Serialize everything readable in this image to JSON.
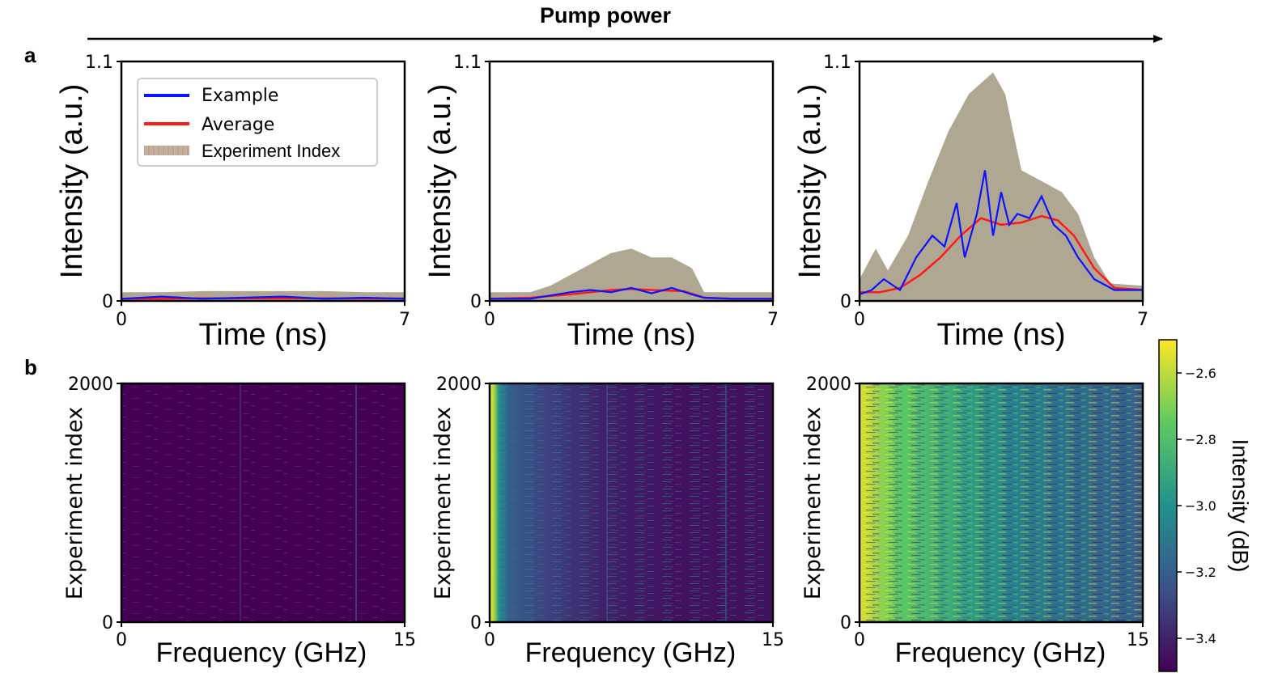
{
  "header": {
    "title": "Pump power"
  },
  "panel_labels": {
    "a": "a",
    "b": "b"
  },
  "chart_data": [
    {
      "type": "line",
      "panel": "a-low",
      "xlabel": "Time (ns)",
      "ylabel": "Intensity (a.u.)",
      "xlim": [
        0,
        7
      ],
      "ylim": [
        0,
        1.1
      ],
      "x_ticks": [
        "0",
        "7"
      ],
      "y_ticks": [
        "0",
        "1.1"
      ],
      "legend": {
        "placement": "top-left",
        "entries": [
          "Example",
          "Average",
          "Experiment Index"
        ]
      },
      "series": [
        {
          "name": "Average",
          "x": [
            0,
            1,
            2,
            3,
            4,
            5,
            6,
            7
          ],
          "values": [
            0.01,
            0.01,
            0.012,
            0.012,
            0.012,
            0.012,
            0.011,
            0.011
          ]
        },
        {
          "name": "Example",
          "x": [
            0,
            1,
            2,
            3,
            4,
            5,
            6,
            7
          ],
          "values": [
            0.01,
            0.02,
            0.01,
            0.015,
            0.02,
            0.01,
            0.015,
            0.01
          ]
        },
        {
          "name": "Experiment Index envelope (max)",
          "x": [
            0,
            1,
            2,
            3,
            4,
            5,
            6,
            7
          ],
          "values": [
            0.04,
            0.04,
            0.045,
            0.045,
            0.045,
            0.045,
            0.04,
            0.04
          ]
        }
      ]
    },
    {
      "type": "line",
      "panel": "a-mid",
      "xlabel": "Time (ns)",
      "ylabel": "Intensity (a.u.)",
      "xlim": [
        0,
        7
      ],
      "ylim": [
        0,
        1.1
      ],
      "x_ticks": [
        "0",
        "7"
      ],
      "y_ticks": [
        "0",
        "1.1"
      ],
      "series": [
        {
          "name": "Average",
          "x": [
            0,
            1,
            2,
            3,
            3.5,
            4,
            4.8,
            5.3,
            6,
            7
          ],
          "values": [
            0.01,
            0.015,
            0.03,
            0.05,
            0.055,
            0.05,
            0.045,
            0.015,
            0.01,
            0.01
          ]
        },
        {
          "name": "Example",
          "x": [
            0,
            1,
            2,
            2.5,
            3,
            3.5,
            4,
            4.5,
            5,
            5.3,
            6,
            7
          ],
          "values": [
            0.01,
            0.01,
            0.04,
            0.05,
            0.04,
            0.06,
            0.035,
            0.06,
            0.03,
            0.015,
            0.01,
            0.01
          ]
        },
        {
          "name": "Experiment Index envelope (max)",
          "x": [
            0,
            1,
            1.5,
            2,
            2.5,
            3,
            3.5,
            4,
            4.5,
            5,
            5.3,
            6,
            7
          ],
          "values": [
            0.04,
            0.04,
            0.07,
            0.12,
            0.17,
            0.22,
            0.24,
            0.2,
            0.2,
            0.15,
            0.04,
            0.04,
            0.04
          ]
        }
      ]
    },
    {
      "type": "line",
      "panel": "a-high",
      "xlabel": "Time (ns)",
      "ylabel": "Intensity (a.u.)",
      "xlim": [
        0,
        7
      ],
      "ylim": [
        0,
        1.1
      ],
      "x_ticks": [
        "0",
        "7"
      ],
      "y_ticks": [
        "0",
        "1.1"
      ],
      "series": [
        {
          "name": "Average",
          "x": [
            0,
            0.5,
            1,
            1.5,
            2,
            2.5,
            3,
            3.5,
            4,
            4.5,
            4.9,
            5.3,
            5.8,
            6.3,
            7
          ],
          "values": [
            0.04,
            0.04,
            0.06,
            0.12,
            0.2,
            0.3,
            0.38,
            0.35,
            0.36,
            0.39,
            0.37,
            0.3,
            0.15,
            0.06,
            0.05
          ]
        },
        {
          "name": "Example",
          "x": [
            0,
            0.3,
            0.6,
            1.0,
            1.4,
            1.8,
            2.1,
            2.4,
            2.6,
            2.9,
            3.1,
            3.3,
            3.5,
            3.7,
            3.9,
            4.2,
            4.5,
            4.8,
            5.1,
            5.4,
            5.8,
            6.3,
            7
          ],
          "values": [
            0.03,
            0.05,
            0.1,
            0.05,
            0.2,
            0.3,
            0.25,
            0.45,
            0.2,
            0.4,
            0.6,
            0.3,
            0.5,
            0.35,
            0.4,
            0.38,
            0.48,
            0.35,
            0.3,
            0.2,
            0.1,
            0.05,
            0.05
          ]
        },
        {
          "name": "Experiment Index envelope (max)",
          "x": [
            0,
            0.4,
            0.7,
            1.2,
            1.7,
            2.2,
            2.7,
            3.0,
            3.3,
            3.6,
            4.0,
            4.5,
            5.0,
            5.4,
            5.8,
            6.2,
            7
          ],
          "values": [
            0.1,
            0.24,
            0.14,
            0.3,
            0.55,
            0.78,
            0.95,
            1.0,
            1.05,
            0.95,
            0.6,
            0.55,
            0.5,
            0.4,
            0.2,
            0.08,
            0.07
          ]
        }
      ]
    },
    {
      "type": "heatmap",
      "panel": "b-low",
      "xlabel": "Frequency (GHz)",
      "ylabel": "Experiment index",
      "xlim": [
        0,
        15
      ],
      "ylim": [
        0,
        2000
      ],
      "x_ticks": [
        "0",
        "15"
      ],
      "y_ticks": [
        "0",
        "2000"
      ],
      "column_profile_dB": {
        "x": [
          0,
          5,
          10,
          15
        ],
        "values": [
          -3.5,
          -3.5,
          -3.5,
          -3.5
        ]
      }
    },
    {
      "type": "heatmap",
      "panel": "b-mid",
      "xlabel": "Frequency (GHz)",
      "ylabel": "Experiment index",
      "xlim": [
        0,
        15
      ],
      "ylim": [
        0,
        2000
      ],
      "x_ticks": [
        "0",
        "15"
      ],
      "y_ticks": [
        "0",
        "2000"
      ],
      "column_profile_dB": {
        "x": [
          0,
          0.2,
          0.5,
          1,
          3,
          6,
          10,
          15
        ],
        "values": [
          -2.55,
          -2.6,
          -3.0,
          -3.2,
          -3.3,
          -3.4,
          -3.45,
          -3.45
        ]
      }
    },
    {
      "type": "heatmap",
      "panel": "b-high",
      "xlabel": "Frequency (GHz)",
      "ylabel": "Experiment index",
      "xlim": [
        0,
        15
      ],
      "ylim": [
        0,
        2000
      ],
      "x_ticks": [
        "0",
        "15"
      ],
      "y_ticks": [
        "0",
        "2000"
      ],
      "column_profile_dB": {
        "x": [
          0,
          0.5,
          2,
          4,
          6,
          8,
          10,
          12,
          15
        ],
        "values": [
          -2.55,
          -2.6,
          -2.75,
          -2.85,
          -2.95,
          -3.05,
          -3.1,
          -3.15,
          -3.2
        ]
      }
    },
    {
      "type": "colorbar",
      "label": "Intensity (dB)",
      "range": [
        -3.5,
        -2.5
      ],
      "ticks": [
        "−2.6",
        "−2.8",
        "−3.0",
        "−3.2",
        "−3.4"
      ],
      "tick_values": [
        -2.6,
        -2.8,
        -3.0,
        -3.2,
        -3.4
      ],
      "colors": [
        "#440154",
        "#3b528b",
        "#21918c",
        "#5ec962",
        "#fde725"
      ]
    }
  ]
}
